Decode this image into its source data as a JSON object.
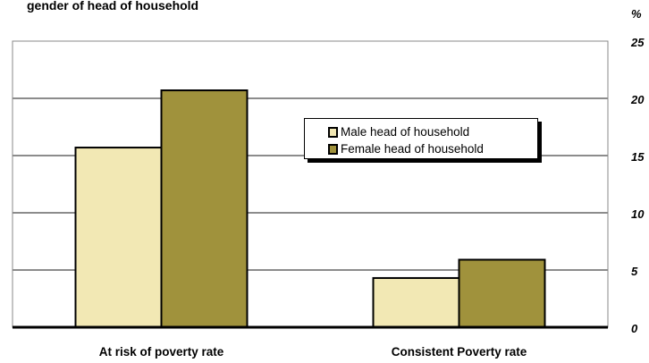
{
  "chart_data": {
    "type": "bar",
    "title": "gender of head of household",
    "ylabel": "%",
    "categories": [
      "At risk of poverty rate",
      "Consistent Poverty rate"
    ],
    "series": [
      {
        "name": "Male head of household",
        "values": [
          15.7,
          4.3
        ],
        "color": "#f2e8b4"
      },
      {
        "name": "Female head of household",
        "values": [
          20.7,
          5.9
        ],
        "color": "#a0923c"
      }
    ],
    "ylim": [
      0,
      25
    ],
    "yticks": [
      "0",
      "5",
      "10",
      "15",
      "20",
      "25"
    ],
    "grid": true,
    "legend": "center-right"
  }
}
